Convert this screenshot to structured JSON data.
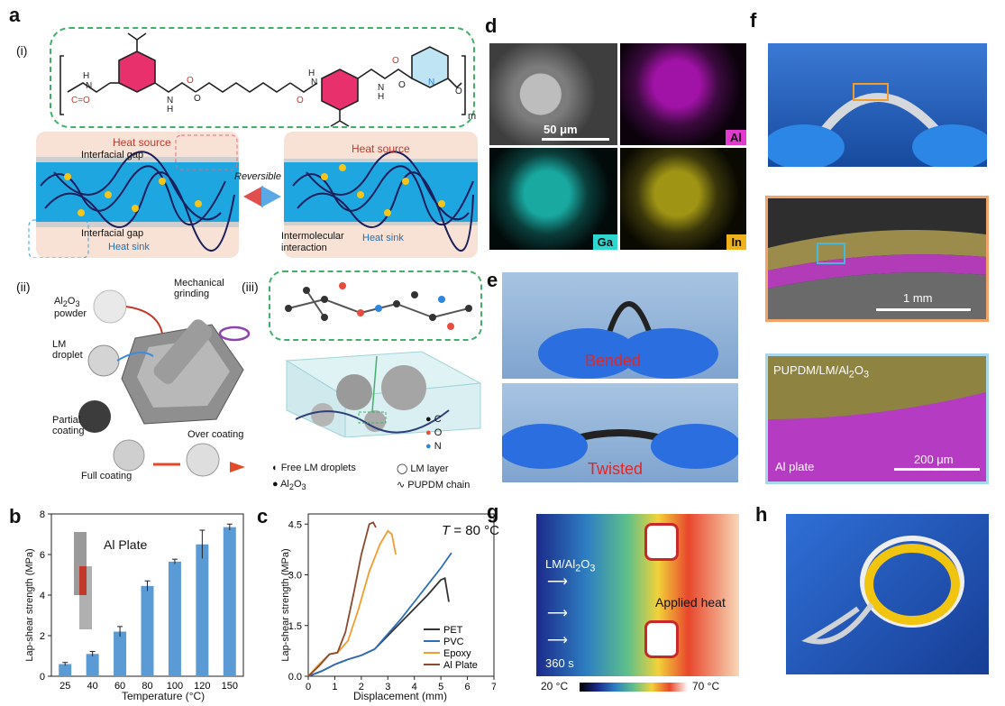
{
  "panels": {
    "a": "a",
    "b": "b",
    "c": "c",
    "d": "d",
    "e": "e",
    "f": "f",
    "g": "g",
    "h": "h"
  },
  "a": {
    "sub_i": "(i)",
    "sub_ii": "(ii)",
    "sub_iii": "(iii)",
    "heat_source": "Heat source",
    "heat_sink": "Heat sink",
    "interfacial_gap": "Interfacial gap",
    "reversible": "Reversible",
    "intermolecular": "Intermolecular",
    "interaction": "interaction",
    "al2o3_powder_1": "Al",
    "al2o3_powder_2": "2",
    "al2o3_powder_3": "O",
    "al2o3_powder_4": "3",
    "al2o3_powder_5": "powder",
    "mech_grinding_1": "Mechanical",
    "mech_grinding_2": "grinding",
    "lm_droplet_1": "LM",
    "lm_droplet_2": "droplet",
    "partial_1": "Partial",
    "partial_2": "coating",
    "full": "Full coating",
    "over": "Over coating",
    "legend_c": "C",
    "legend_o": "O",
    "legend_n": "N",
    "free_lm": "Free LM droplets",
    "lm_layer": "LM layer",
    "al2o3": "Al",
    "al2o3_sub2": "2",
    "al2o3_o": "O",
    "al2o3_sub3": "3",
    "pupdm_chain": "PUPDM chain",
    "subscript_m": "m"
  },
  "d": {
    "scale": "50 μm",
    "al": "Al",
    "ga": "Ga",
    "in": "In"
  },
  "e": {
    "bended": "Bended",
    "twisted": "Twisted"
  },
  "f": {
    "scale_1": "1 mm",
    "scale_2": "200 μm",
    "layer_label": "PUPDM/LM/Al",
    "layer_sub2": "2",
    "layer_o": "O",
    "layer_sub3": "3",
    "al_plate": "Al plate"
  },
  "g": {
    "label_1": "LM/Al",
    "label_sub2": "2",
    "label_o": "O",
    "label_sub3": "3",
    "applied_heat": "Applied heat",
    "time": "360 s",
    "cmin": "20 °C",
    "cmax": "70 °C"
  },
  "colors": {
    "green_dash": "#43b06a",
    "orange_frame": "#f0a36a",
    "blue_frame": "#a8d8ea",
    "bar": "#5b9bd5"
  },
  "chart_data": [
    {
      "type": "bar",
      "panel": "b",
      "inset_label": "Al Plate",
      "ylabel": "Lap-shear strength (MPa)",
      "xlabel": "Temperature (°C)",
      "categories": [
        "25",
        "40",
        "60",
        "80",
        "100",
        "120",
        "150"
      ],
      "values": [
        0.6,
        1.1,
        2.2,
        4.45,
        5.65,
        6.5,
        7.35
      ],
      "errors": [
        0.08,
        0.12,
        0.25,
        0.25,
        0.12,
        0.7,
        0.15
      ],
      "ylim": [
        0,
        8
      ],
      "yticks": [
        "0",
        "2",
        "4",
        "6",
        "8"
      ]
    },
    {
      "type": "line",
      "panel": "c",
      "title_T": "T",
      "title_rest": " = 80 °C",
      "ylabel": "Lap-shear strength (MPa)",
      "xlabel": "Displacement (mm)",
      "xlim": [
        0,
        7
      ],
      "ylim": [
        0,
        4.8
      ],
      "xticks": [
        "0",
        "1",
        "2",
        "3",
        "4",
        "5",
        "6",
        "7"
      ],
      "yticks": [
        "0.0",
        "1.5",
        "3.0",
        "4.5"
      ],
      "series": [
        {
          "name": "PET",
          "color": "#333333",
          "x": [
            0,
            0.5,
            1.0,
            1.5,
            2.0,
            2.5,
            3.0,
            3.5,
            4.0,
            4.5,
            5.0,
            5.15,
            5.3
          ],
          "y": [
            0,
            0.15,
            0.35,
            0.5,
            0.62,
            0.8,
            1.2,
            1.6,
            2.0,
            2.4,
            2.85,
            2.9,
            2.2
          ]
        },
        {
          "name": "PVC",
          "color": "#2f6db5",
          "x": [
            0,
            0.5,
            1.0,
            1.5,
            2.0,
            2.5,
            3.0,
            3.5,
            4.0,
            4.5,
            5.0,
            5.4
          ],
          "y": [
            0,
            0.15,
            0.35,
            0.5,
            0.62,
            0.8,
            1.25,
            1.7,
            2.2,
            2.7,
            3.2,
            3.65
          ]
        },
        {
          "name": "Epoxy",
          "color": "#f39c2c",
          "x": [
            0,
            0.4,
            0.8,
            1.1,
            1.5,
            1.9,
            2.3,
            2.7,
            3.0,
            3.15,
            3.3
          ],
          "y": [
            0,
            0.35,
            0.65,
            0.7,
            1.05,
            2.0,
            3.1,
            3.9,
            4.3,
            4.2,
            3.6
          ]
        },
        {
          "name": "Al Plate",
          "color": "#8b4a2f",
          "x": [
            0,
            0.4,
            0.8,
            1.1,
            1.4,
            1.7,
            2.0,
            2.3,
            2.45,
            2.55
          ],
          "y": [
            0,
            0.3,
            0.65,
            0.7,
            1.3,
            2.4,
            3.6,
            4.5,
            4.55,
            4.4
          ]
        }
      ]
    }
  ]
}
